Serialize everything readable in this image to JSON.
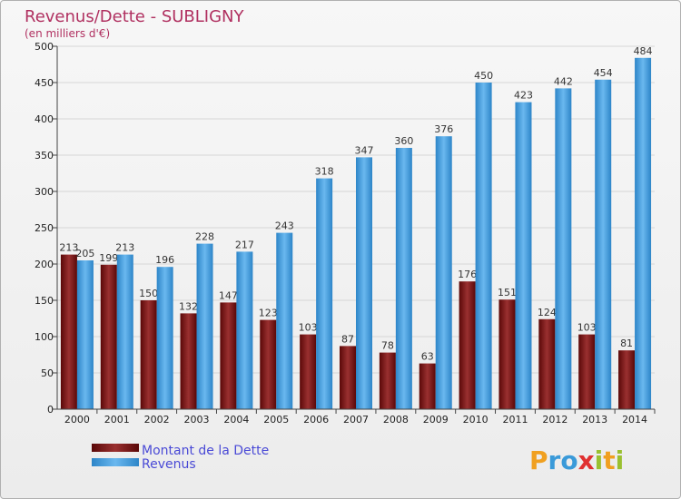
{
  "chart_data": {
    "type": "bar",
    "title": "Revenus/Dette - SUBLIGNY",
    "subtitle": "(en milliers d'€)",
    "categories": [
      "2000",
      "2001",
      "2002",
      "2003",
      "2004",
      "2005",
      "2006",
      "2007",
      "2008",
      "2009",
      "2010",
      "2011",
      "2012",
      "2013",
      "2014"
    ],
    "series": [
      {
        "name": "Montant de la Dette",
        "color": "#7a1a1a",
        "values": [
          213,
          199,
          150,
          132,
          147,
          123,
          103,
          87,
          78,
          63,
          176,
          151,
          124,
          103,
          81
        ]
      },
      {
        "name": "Revenus",
        "color": "#4aa3e0",
        "values": [
          205,
          213,
          196,
          228,
          217,
          243,
          318,
          347,
          360,
          376,
          450,
          423,
          442,
          454,
          484
        ]
      }
    ],
    "ylim": [
      0,
      500
    ],
    "yticks": [
      0,
      50,
      100,
      150,
      200,
      250,
      300,
      350,
      400,
      450,
      500
    ],
    "grid": true,
    "legend": "bottom-left"
  },
  "logo": {
    "text": "Proxiti"
  }
}
